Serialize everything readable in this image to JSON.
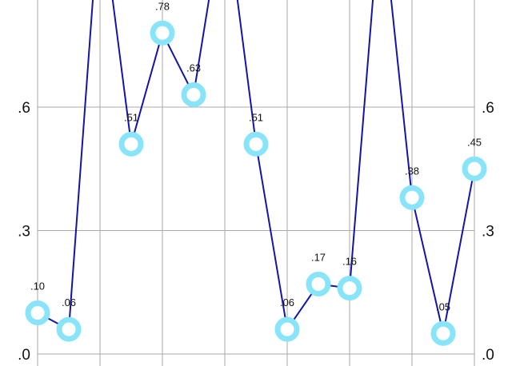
{
  "chart_data": {
    "type": "line",
    "x": [
      0,
      1,
      2,
      3,
      4,
      5,
      6,
      7,
      8,
      9,
      10,
      11,
      12,
      13,
      14
    ],
    "series": [
      {
        "values": [
          0.1,
          0.06,
          1.1,
          0.51,
          0.78,
          0.63,
          1.1,
          0.51,
          0.06,
          0.17,
          0.16,
          1.1,
          0.38,
          0.05,
          0.45
        ],
        "labels": [
          ".10",
          ".06",
          "",
          ".51",
          ".78",
          ".63",
          "",
          ".51",
          ".06",
          ".17",
          ".16",
          "",
          ".38",
          ".05",
          ".45"
        ]
      }
    ],
    "yticks": [
      ".0",
      ".3",
      ".6"
    ],
    "ytick_values": [
      0,
      0.3,
      0.6
    ],
    "ylim": [
      0,
      0.86
    ],
    "grid": true,
    "colors": {
      "line": "#1414aa",
      "marker": "#88e4f8",
      "grid": "#aaaaaa"
    }
  }
}
